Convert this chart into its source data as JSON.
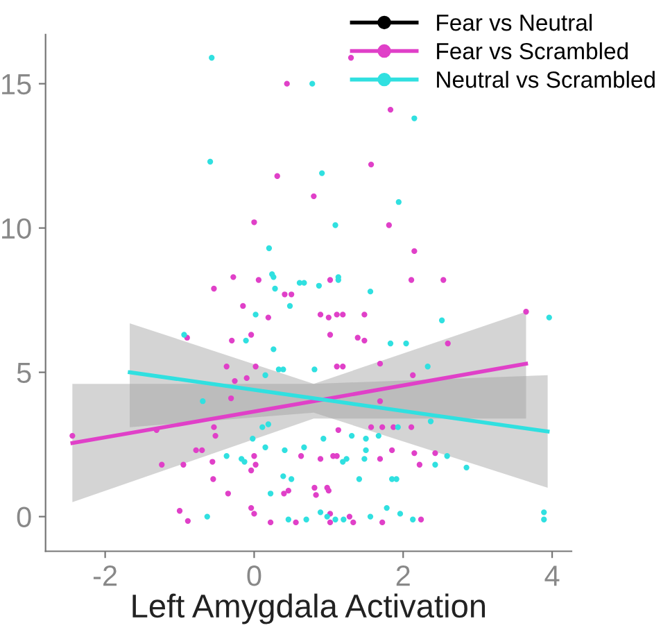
{
  "chart_data": {
    "type": "scatter",
    "xlabel": "Left Amygdala Activation",
    "xlim": [
      -2.8,
      4.26
    ],
    "ylim": [
      -1.2,
      16.7
    ],
    "xticks": [
      -2,
      0,
      2,
      4
    ],
    "yticks": [
      0,
      5,
      10,
      15
    ],
    "grid": false,
    "legend": "top right",
    "marker": "circle",
    "series": [
      {
        "name": "Fear vs Neutral",
        "color": "#000000"
      },
      {
        "name": "Fear vs Scrambled",
        "color": "#e040c8",
        "x": [
          0.44,
          0.31,
          0.8,
          0,
          -0.54,
          -0.28,
          0.06,
          0.41,
          0.5,
          1.02,
          1.3,
          1.83,
          1.57,
          1.81,
          2.15,
          2.11,
          2.54,
          -0.15,
          0.19,
          -0.9,
          -0.3,
          -0.04,
          -0.37,
          0.02,
          -0.26,
          -0.1,
          -0.31,
          -2.44,
          -1.31,
          -0.54,
          -0.52,
          -0.78,
          -0.7,
          -1.24,
          -0.95,
          -0.56,
          -0.55,
          -0.35,
          0,
          0.02,
          -0.04,
          -1,
          -0.89,
          -0.04,
          0,
          0.22,
          0.56,
          0.4,
          0.46,
          0.81,
          0.83,
          1.0,
          0.63,
          0.89,
          1.06,
          1.02,
          1.02,
          0.89,
          1.19,
          1.02,
          1.19,
          3.65,
          2.6,
          2.13,
          1.69,
          1.11,
          1.0,
          1.11,
          1.48,
          1.39,
          1.48,
          1.69,
          1.57,
          1.72,
          1.87,
          2.11,
          1.13,
          1.85,
          2.15,
          2.43,
          2.22,
          1.69,
          1.11,
          0.98,
          1.28,
          1.33,
          1.72,
          2.24
        ],
        "values": [
          15.0,
          11.8,
          11.1,
          10.2,
          7.9,
          8.3,
          8.2,
          7.7,
          7.7,
          8.2,
          15.9,
          14.1,
          12.2,
          10.1,
          9.2,
          8.2,
          8.2,
          7.3,
          6.9,
          6.2,
          6.1,
          6.3,
          5.2,
          5.2,
          4.7,
          4.8,
          4.1,
          2.8,
          3.0,
          3.1,
          2.8,
          2.3,
          2.3,
          1.8,
          1.8,
          1.9,
          1.3,
          0.8,
          2.1,
          1.8,
          1.6,
          0.2,
          -0.15,
          0.3,
          0.1,
          -0.2,
          -0.2,
          0.8,
          0.9,
          1.0,
          0.75,
          0.9,
          2.1,
          2.0,
          2.1,
          -0.2,
          0.1,
          7.0,
          7.0,
          6.3,
          5.2,
          7.1,
          6.0,
          4.9,
          5.3,
          5.2,
          6.9,
          7.0,
          7.0,
          6.2,
          6.1,
          4.0,
          3.1,
          3.1,
          3.1,
          3.1,
          3.0,
          2.3,
          2.2,
          2.2,
          1.8,
          2.0,
          2.1,
          1.0,
          0,
          -0.2,
          -0.2,
          -0.1
        ]
      },
      {
        "name": "Neutral vs Scrambled",
        "color": "#30e0e0",
        "x": [
          -0.57,
          0.78,
          -0.59,
          0.91,
          1.09,
          0.2,
          0.24,
          0.28,
          0.61,
          0.67,
          0.87,
          1.13,
          2.15,
          1.94,
          1.13,
          1.56,
          0.26,
          0.48,
          0.02,
          -0.11,
          -0.94,
          0.26,
          0.15,
          0.33,
          0.39,
          0.81,
          -0.69,
          0.19,
          0.11,
          -0.02,
          0.15,
          0.41,
          0.67,
          -0.37,
          -0.17,
          -0.13,
          0.39,
          0.5,
          0.22,
          -0.63,
          0.46,
          0.7,
          0.89,
          1.09,
          1.19,
          0.93,
          2.52,
          1.83,
          2.04,
          2.33,
          3.96,
          1.31,
          1.5,
          1.67,
          1.93,
          2.37,
          1.5,
          1.24,
          1.48,
          2.43,
          2.59,
          2.85,
          1.41,
          1.85,
          1.91,
          1.78,
          1.96,
          2.13,
          3.89,
          3.89,
          0.98,
          1.56,
          1.2
        ],
        "values": [
          15.9,
          15.0,
          12.3,
          11.9,
          10.1,
          9.3,
          8.4,
          7.9,
          8.1,
          8.1,
          8.0,
          8.2,
          13.8,
          10.9,
          8.3,
          7.8,
          8.3,
          7.3,
          7.0,
          6.1,
          6.3,
          5.8,
          4.9,
          5.1,
          5.1,
          5.1,
          4.0,
          3.2,
          3.1,
          2.7,
          2.4,
          2.3,
          2.4,
          2.1,
          2.0,
          1.9,
          1.4,
          1.3,
          0.8,
          0.0,
          -0.1,
          -0.1,
          0.15,
          -0.1,
          1.9,
          2.7,
          6.8,
          6.0,
          6.0,
          5.2,
          6.9,
          2.8,
          2.7,
          2.8,
          3.1,
          3.3,
          2.3,
          2.0,
          2.0,
          1.8,
          2.1,
          1.7,
          1.3,
          1.3,
          1.3,
          0.3,
          0.1,
          -0.1,
          0.15,
          -0.1,
          0.0,
          0.0,
          -0.1
        ]
      },
      {
        "type": "line",
        "marker": "none",
        "color": "#e040c8",
        "x": [
          -2.44,
          0.8,
          3.65
        ],
        "values": [
          2.55,
          4.0,
          5.3
        ],
        "lower": [
          0.5,
          3.4,
          3.4
        ],
        "upper": [
          4.6,
          4.6,
          7.1
        ]
      },
      {
        "type": "line",
        "marker": "none",
        "color": "#30e0e0",
        "x": [
          -1.67,
          0.8,
          3.94
        ],
        "values": [
          5.0,
          4.1,
          2.95
        ],
        "lower": [
          3.1,
          3.6,
          1.0
        ],
        "upper": [
          6.7,
          4.6,
          4.9
        ]
      }
    ]
  }
}
